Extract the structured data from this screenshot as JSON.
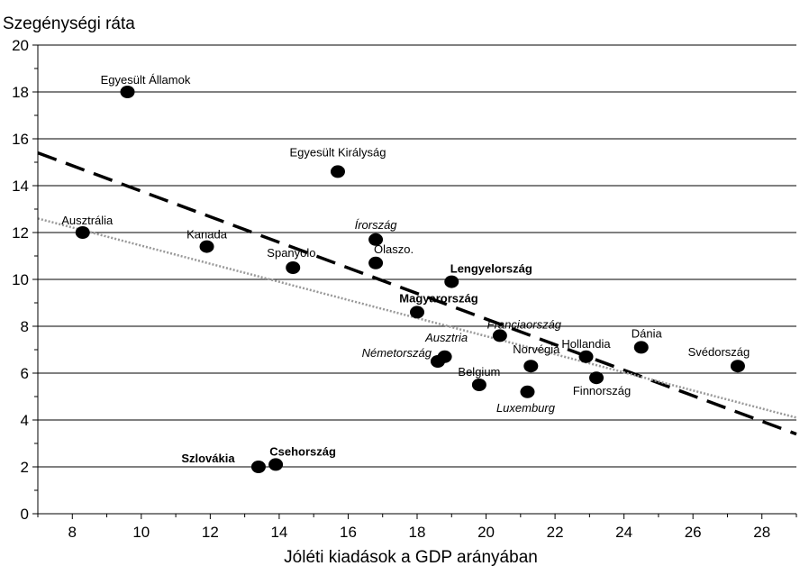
{
  "chart_data": {
    "type": "scatter",
    "title": "",
    "ylabel": "Szegénységi ráta",
    "xlabel": "Jóléti kiadások a GDP arányában",
    "xlim": [
      7,
      29
    ],
    "ylim": [
      0,
      20
    ],
    "xticks": [
      8,
      10,
      12,
      14,
      16,
      18,
      20,
      22,
      24,
      26,
      28
    ],
    "yticks": [
      0,
      2,
      4,
      6,
      8,
      10,
      12,
      14,
      16,
      18,
      20
    ],
    "grid": "horizontal",
    "legend": "none",
    "point_color": "#000000",
    "points": [
      {
        "label": "Egyesült Államok",
        "x": 9.6,
        "y": 18.0,
        "style": "normal"
      },
      {
        "label": "Egyesült Királyság",
        "x": 15.7,
        "y": 14.6,
        "style": "normal"
      },
      {
        "label": "Ausztrália",
        "x": 8.3,
        "y": 12.0,
        "style": "normal"
      },
      {
        "label": "Kanada",
        "x": 11.9,
        "y": 11.4,
        "style": "normal"
      },
      {
        "label": "Spanyolo.",
        "x": 14.4,
        "y": 10.5,
        "style": "normal"
      },
      {
        "label": "Írország",
        "x": 16.8,
        "y": 11.7,
        "style": "italic"
      },
      {
        "label": "Olaszo.",
        "x": 16.8,
        "y": 10.7,
        "style": "normal"
      },
      {
        "label": "Lengyelország",
        "x": 19.0,
        "y": 9.9,
        "style": "bold"
      },
      {
        "label": "Magyarország",
        "x": 18.0,
        "y": 8.6,
        "style": "bold"
      },
      {
        "label": "Franciaország",
        "x": 20.4,
        "y": 7.6,
        "style": "italic"
      },
      {
        "label": "Ausztria",
        "x": 18.8,
        "y": 6.7,
        "style": "italic"
      },
      {
        "label": "Németország",
        "x": 18.6,
        "y": 6.5,
        "style": "italic"
      },
      {
        "label": "Belgium",
        "x": 19.8,
        "y": 5.5,
        "style": "normal"
      },
      {
        "label": "Luxemburg",
        "x": 21.2,
        "y": 5.2,
        "style": "italic"
      },
      {
        "label": "Norvégia",
        "x": 21.3,
        "y": 6.3,
        "style": "normal"
      },
      {
        "label": "Hollandia",
        "x": 22.9,
        "y": 6.7,
        "style": "normal"
      },
      {
        "label": "Finnország",
        "x": 23.2,
        "y": 5.8,
        "style": "normal"
      },
      {
        "label": "Dánia",
        "x": 24.5,
        "y": 7.1,
        "style": "normal"
      },
      {
        "label": "Svédország",
        "x": 27.3,
        "y": 6.3,
        "style": "normal"
      },
      {
        "label": "Szlovákia",
        "x": 13.4,
        "y": 2.0,
        "style": "bold"
      },
      {
        "label": "Csehország",
        "x": 13.9,
        "y": 2.1,
        "style": "bold"
      }
    ],
    "trend_lines": [
      {
        "style": "dashed",
        "color": "#000000",
        "x": [
          7,
          29
        ],
        "y": [
          15.4,
          3.4
        ]
      },
      {
        "style": "dotted",
        "color": "#999999",
        "x": [
          7,
          29
        ],
        "y": [
          12.6,
          4.1
        ]
      }
    ]
  }
}
